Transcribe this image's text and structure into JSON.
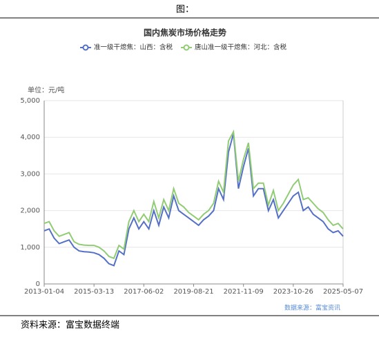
{
  "header": "图：",
  "chart_data": {
    "type": "line",
    "title": "国内焦炭市场价格走势",
    "y_label": "单位：元/吨",
    "source": "数据来源：富宝资讯",
    "categories": [
      "2013-01-04",
      null,
      null,
      null,
      null,
      null,
      null,
      null,
      null,
      null,
      "2015-03-13",
      null,
      null,
      null,
      null,
      null,
      null,
      null,
      null,
      null,
      "2017-06-02",
      null,
      null,
      null,
      null,
      null,
      null,
      null,
      null,
      null,
      "2019-08-21",
      null,
      null,
      null,
      null,
      null,
      null,
      null,
      null,
      null,
      "2021-11-09",
      null,
      null,
      null,
      null,
      null,
      null,
      null,
      null,
      null,
      "2023-10-26",
      null,
      null,
      null,
      null,
      null,
      null,
      null,
      null,
      null,
      "2025-05-07"
    ],
    "series": [
      {
        "name": "准一级干熄焦：山西：含税",
        "color": "#5470c6",
        "values": [
          1450,
          1500,
          1250,
          1100,
          1150,
          1200,
          1000,
          900,
          880,
          870,
          850,
          800,
          700,
          550,
          500,
          900,
          800,
          1500,
          1800,
          1500,
          1700,
          1500,
          2000,
          1600,
          2100,
          1800,
          2400,
          2000,
          1900,
          1800,
          1700,
          1600,
          1750,
          1850,
          2000,
          2600,
          2300,
          3600,
          4100,
          2600,
          3200,
          3700,
          2400,
          2600,
          2600,
          2000,
          2300,
          1800,
          2000,
          2200,
          2400,
          2500,
          2000,
          2100,
          1900,
          1800,
          1700,
          1500,
          1400,
          1450,
          1300
        ]
      },
      {
        "name": "唐山准一级干熄焦：河北：含税",
        "color": "#91cc75",
        "values": [
          1650,
          1700,
          1450,
          1300,
          1350,
          1400,
          1150,
          1080,
          1060,
          1050,
          1050,
          1000,
          900,
          750,
          700,
          1050,
          950,
          1700,
          2000,
          1700,
          1900,
          1700,
          2250,
          1800,
          2300,
          2000,
          2600,
          2200,
          2100,
          1950,
          1850,
          1750,
          1900,
          2000,
          2200,
          2800,
          2500,
          3900,
          4150,
          2800,
          3400,
          3850,
          2600,
          2750,
          2750,
          2150,
          2550,
          2000,
          2200,
          2450,
          2700,
          2850,
          2300,
          2350,
          2200,
          2050,
          1950,
          1750,
          1600,
          1650,
          1500
        ]
      }
    ],
    "ylim": [
      0,
      5000
    ],
    "yticks": [
      0,
      {
        "value": 1000,
        "label": "1,000"
      },
      {
        "value": 2000,
        "label": "2,000"
      },
      {
        "value": 3000,
        "label": "3,000"
      },
      {
        "value": 4000,
        "label": "4,000"
      },
      {
        "value": 5000,
        "label": "5,000"
      }
    ],
    "grid": true
  },
  "footer": "资料来源：富宝数据终端"
}
